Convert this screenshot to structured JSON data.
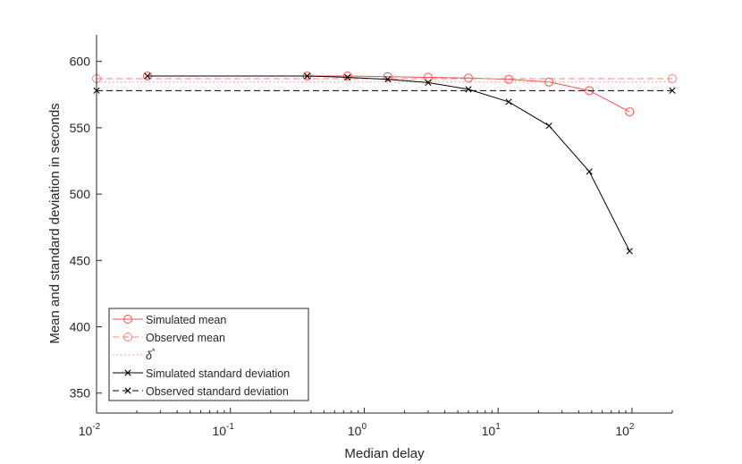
{
  "chart_data": {
    "type": "line",
    "xlabel": "Median delay",
    "ylabel": "Mean and standard deviation in seconds",
    "xscale": "log",
    "xlim": [
      0.01,
      200
    ],
    "ylim": [
      335,
      620
    ],
    "yticks": [
      350,
      400,
      450,
      500,
      550,
      600
    ],
    "xticks": [
      {
        "value": 0.01,
        "base": "10",
        "exp": "-2"
      },
      {
        "value": 0.1,
        "base": "10",
        "exp": "-1"
      },
      {
        "value": 1,
        "base": "10",
        "exp": "0"
      },
      {
        "value": 10,
        "base": "10",
        "exp": "1"
      },
      {
        "value": 100,
        "base": "10",
        "exp": "2"
      }
    ],
    "grid": false,
    "legend_position": "bottom-left",
    "series": [
      {
        "name": "Simulated mean",
        "color": "#ff4d4d",
        "style": "solid",
        "marker": "circle",
        "x": [
          0.024,
          0.375,
          0.75,
          1.5,
          3,
          6,
          12,
          24,
          48,
          96
        ],
        "y": [
          589,
          589,
          589,
          588.5,
          588,
          587.5,
          586.5,
          584.5,
          578,
          562
        ]
      },
      {
        "name": "Observed mean",
        "color": "#ff8080",
        "style": "dashed",
        "marker": "circle",
        "x": [
          0.01,
          200
        ],
        "y": [
          587,
          587
        ]
      },
      {
        "name": "δ*",
        "color": "#ff8080",
        "style": "dotted",
        "marker": "none",
        "x": [
          0.01,
          200
        ],
        "y": [
          584.5,
          584.5
        ]
      },
      {
        "name": "Simulated standard deviation",
        "color": "#000000",
        "style": "solid",
        "marker": "x",
        "x": [
          0.024,
          0.375,
          0.75,
          1.5,
          3,
          6,
          12,
          24,
          48,
          96
        ],
        "y": [
          589,
          589,
          588,
          586.5,
          584,
          579,
          569.5,
          551.5,
          517,
          457
        ]
      },
      {
        "name": "Observed standard deviation",
        "color": "#000000",
        "style": "dashed",
        "marker": "x",
        "x": [
          0.01,
          200
        ],
        "y": [
          578,
          578
        ]
      }
    ]
  }
}
